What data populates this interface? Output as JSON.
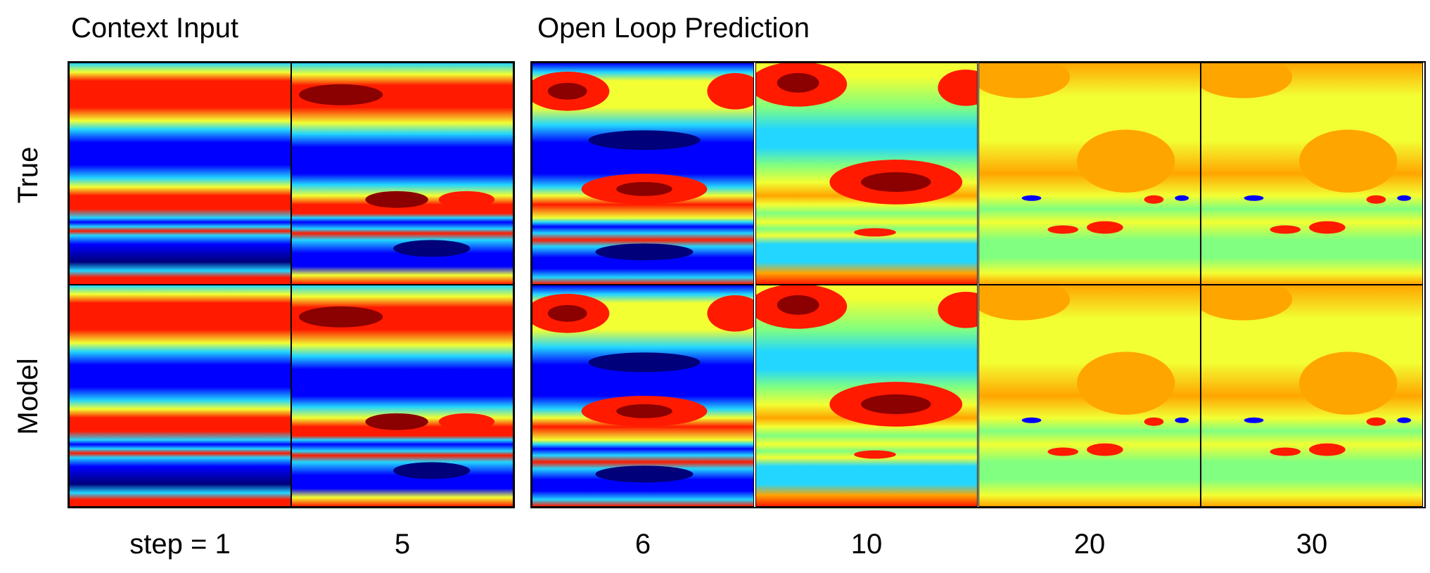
{
  "section_titles": {
    "context": "Context Input",
    "prediction": "Open Loop Prediction"
  },
  "row_labels": [
    "True",
    "Model"
  ],
  "steps": [
    "step = 1",
    "5",
    "6",
    "10",
    "20",
    "30"
  ],
  "colormap": "jet",
  "colors": {
    "dark_red": "#8b0000",
    "red": "#ff1a00",
    "orange": "#ffa500",
    "yellow": "#f2ff33",
    "green": "#80ff80",
    "cyan": "#22d6ff",
    "blue": "#0000ff",
    "dark_blue": "#00007a"
  }
}
